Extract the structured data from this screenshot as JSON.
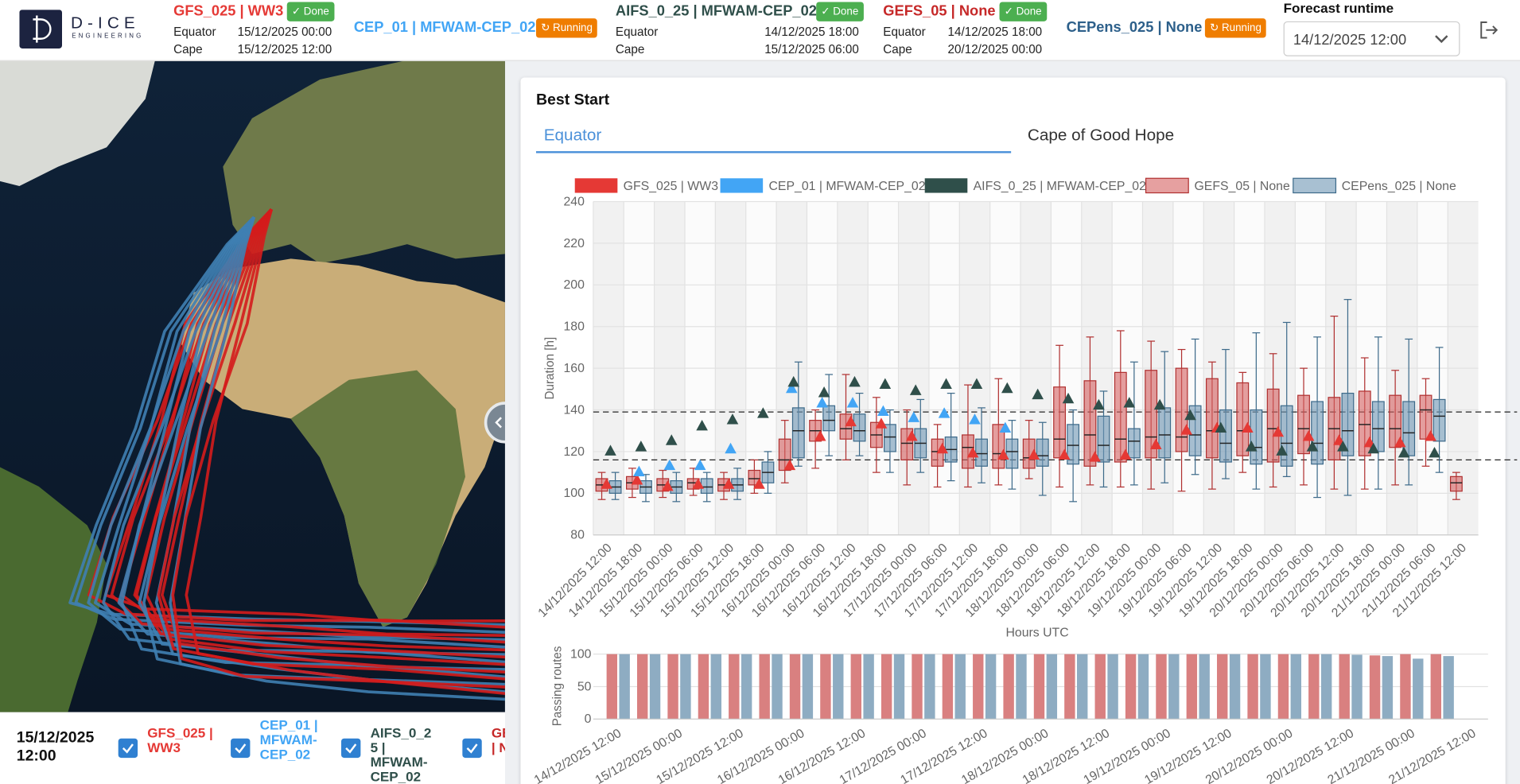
{
  "header": {
    "logo": {
      "name": "D-ICE",
      "tagline": "ENGINEERING"
    },
    "models": [
      {
        "name": "GFS_025 | WW3",
        "color": "#e53935",
        "status": "Done",
        "rows": [
          {
            "label": "Equator",
            "value": "15/12/2025 00:00"
          },
          {
            "label": "Cape",
            "value": "15/12/2025 12:00"
          }
        ]
      },
      {
        "name": "CEP_01 | MFWAM-CEP_02",
        "color": "#42a5f5",
        "status": "Running"
      },
      {
        "name": "AIFS_0_25 | MFWAM-CEP_02",
        "color": "#2f4f4a",
        "status": "Done",
        "rows": [
          {
            "label": "Equator",
            "value": "14/12/2025 18:00"
          },
          {
            "label": "Cape",
            "value": "15/12/2025 06:00"
          }
        ]
      },
      {
        "name": "GEFS_05 | None",
        "color": "#c62828",
        "status": "Done",
        "rows": [
          {
            "label": "Equator",
            "value": "14/12/2025 18:00"
          },
          {
            "label": "Cape",
            "value": "20/12/2025 00:00"
          }
        ]
      },
      {
        "name": "CEPens_025 | None",
        "color": "#2c5f8a",
        "status": "Running"
      }
    ],
    "forecast_runtime": {
      "label": "Forecast runtime",
      "value": "14/12/2025 12:00"
    }
  },
  "bottom_bar": {
    "date": "15/12/2025 12:00"
  },
  "panel": {
    "title": "Best Start",
    "tabs": [
      "Equator",
      "Cape of Good Hope"
    ],
    "active_tab": 0
  },
  "chart_data": [
    {
      "type": "box",
      "ylabel": "Duration [h]",
      "xlabel": "Hours UTC",
      "categories": [
        "14/12/2025 12:00",
        "14/12/2025 18:00",
        "15/12/2025 00:00",
        "15/12/2025 06:00",
        "15/12/2025 12:00",
        "15/12/2025 18:00",
        "16/12/2025 00:00",
        "16/12/2025 06:00",
        "16/12/2025 12:00",
        "16/12/2025 18:00",
        "17/12/2025 00:00",
        "17/12/2025 06:00",
        "17/12/2025 12:00",
        "17/12/2025 18:00",
        "18/12/2025 00:00",
        "18/12/2025 06:00",
        "18/12/2025 12:00",
        "18/12/2025 18:00",
        "19/12/2025 00:00",
        "19/12/2025 06:00",
        "19/12/2025 12:00",
        "19/12/2025 18:00",
        "20/12/2025 00:00",
        "20/12/2025 06:00",
        "20/12/2025 12:00",
        "20/12/2025 18:00",
        "21/12/2025 00:00",
        "21/12/2025 06:00",
        "21/12/2025 12:00"
      ],
      "ylim": [
        80,
        240
      ],
      "yticks": [
        80,
        100,
        120,
        140,
        160,
        180,
        200,
        220,
        240
      ],
      "grid": true,
      "reference_lines": [
        139,
        116
      ],
      "series": [
        {
          "name": "GFS_025 | WW3",
          "kind": "triangle",
          "color": "#e53935",
          "values": [
            104,
            106,
            103,
            104,
            104,
            104,
            113,
            127,
            134,
            133,
            127,
            121,
            119,
            118,
            118,
            118,
            117,
            118,
            123,
            130,
            131,
            131,
            129,
            127,
            125,
            124,
            124,
            127,
            null
          ]
        },
        {
          "name": "CEP_01 | MFWAM-CEP_02",
          "kind": "triangle",
          "color": "#42a5f5",
          "values": [
            null,
            110,
            113,
            113,
            121,
            null,
            150,
            143,
            143,
            139,
            136,
            138,
            135,
            131,
            null,
            null,
            null,
            null,
            null,
            null,
            null,
            null,
            null,
            null,
            null,
            null,
            null,
            null,
            null
          ]
        },
        {
          "name": "AIFS_0_25 | MFWAM-CEP_02",
          "kind": "triangle",
          "color": "#2f4f4a",
          "values": [
            120,
            122,
            125,
            132,
            135,
            138,
            153,
            148,
            153,
            152,
            149,
            152,
            152,
            150,
            147,
            145,
            142,
            143,
            142,
            137,
            131,
            122,
            120,
            122,
            122,
            121,
            119,
            119,
            null
          ]
        },
        {
          "name": "GEFS_05 | None",
          "kind": "box",
          "color": "rgba(214,96,96,0.6)",
          "border": "#b03030",
          "values": [
            {
              "low": 97,
              "q1": 101,
              "median": 104,
              "q3": 107,
              "high": 110
            },
            {
              "low": 98,
              "q1": 102,
              "median": 105,
              "q3": 108,
              "high": 112
            },
            {
              "low": 98,
              "q1": 101,
              "median": 104,
              "q3": 107,
              "high": 111
            },
            {
              "low": 99,
              "q1": 102,
              "median": 105,
              "q3": 107,
              "high": 112
            },
            {
              "low": 97,
              "q1": 101,
              "median": 104,
              "q3": 107,
              "high": 110
            },
            {
              "low": 100,
              "q1": 104,
              "median": 107,
              "q3": 111,
              "high": 116
            },
            {
              "low": 105,
              "q1": 111,
              "median": 116,
              "q3": 126,
              "high": 135
            },
            {
              "low": 112,
              "q1": 125,
              "median": 130,
              "q3": 135,
              "high": 140
            },
            {
              "low": 116,
              "q1": 126,
              "median": 131,
              "q3": 138,
              "high": 157
            },
            {
              "low": 110,
              "q1": 122,
              "median": 128,
              "q3": 134,
              "high": 146
            },
            {
              "low": 104,
              "q1": 116,
              "median": 124,
              "q3": 131,
              "high": 140
            },
            {
              "low": 103,
              "q1": 113,
              "median": 120,
              "q3": 126,
              "high": 133
            },
            {
              "low": 103,
              "q1": 112,
              "median": 122,
              "q3": 128,
              "high": 152
            },
            {
              "low": 104,
              "q1": 112,
              "median": 119,
              "q3": 133,
              "high": 155
            },
            {
              "low": 107,
              "q1": 112,
              "median": 117,
              "q3": 126,
              "high": 135
            },
            {
              "low": 103,
              "q1": 117,
              "median": 126,
              "q3": 151,
              "high": 171
            },
            {
              "low": 104,
              "q1": 113,
              "median": 128,
              "q3": 154,
              "high": 175
            },
            {
              "low": 103,
              "q1": 115,
              "median": 126,
              "q3": 158,
              "high": 178
            },
            {
              "low": 102,
              "q1": 117,
              "median": 127,
              "q3": 159,
              "high": 173
            },
            {
              "low": 101,
              "q1": 120,
              "median": 127,
              "q3": 160,
              "high": 169
            },
            {
              "low": 102,
              "q1": 117,
              "median": 130,
              "q3": 155,
              "high": 163
            },
            {
              "low": 110,
              "q1": 118,
              "median": 130,
              "q3": 153,
              "high": 158
            },
            {
              "low": 103,
              "q1": 115,
              "median": 131,
              "q3": 150,
              "high": 167
            },
            {
              "low": 104,
              "q1": 119,
              "median": 131,
              "q3": 147,
              "high": 160
            },
            {
              "low": 102,
              "q1": 116,
              "median": 131,
              "q3": 146,
              "high": 185
            },
            {
              "low": 102,
              "q1": 118,
              "median": 133,
              "q3": 149,
              "high": 165
            },
            {
              "low": 104,
              "q1": 122,
              "median": 131,
              "q3": 147,
              "high": 159
            },
            {
              "low": 113,
              "q1": 126,
              "median": 140,
              "q3": 147,
              "high": 155
            },
            {
              "low": 97,
              "q1": 101,
              "median": 105,
              "q3": 108,
              "high": 110
            }
          ]
        },
        {
          "name": "CEPens_025 | None",
          "kind": "box",
          "color": "rgba(110,150,180,0.6)",
          "border": "#3d6a8a",
          "values": [
            {
              "low": 97,
              "q1": 100,
              "median": 103,
              "q3": 106,
              "high": 110
            },
            {
              "low": 96,
              "q1": 100,
              "median": 103,
              "q3": 106,
              "high": 109
            },
            {
              "low": 96,
              "q1": 100,
              "median": 103,
              "q3": 106,
              "high": 110
            },
            {
              "low": 96,
              "q1": 100,
              "median": 103,
              "q3": 107,
              "high": 110
            },
            {
              "low": 97,
              "q1": 101,
              "median": 104,
              "q3": 107,
              "high": 112
            },
            {
              "low": 100,
              "q1": 105,
              "median": 110,
              "q3": 115,
              "high": 120
            },
            {
              "low": 113,
              "q1": 117,
              "median": 130,
              "q3": 141,
              "high": 163
            },
            {
              "low": 118,
              "q1": 130,
              "median": 135,
              "q3": 142,
              "high": 157
            },
            {
              "low": 118,
              "q1": 125,
              "median": 130,
              "q3": 138,
              "high": 148
            },
            {
              "low": 110,
              "q1": 120,
              "median": 127,
              "q3": 133,
              "high": 140
            },
            {
              "low": 110,
              "q1": 117,
              "median": 124,
              "q3": 131,
              "high": 145
            },
            {
              "low": 106,
              "q1": 115,
              "median": 121,
              "q3": 127,
              "high": 148
            },
            {
              "low": 105,
              "q1": 113,
              "median": 119,
              "q3": 126,
              "high": 141
            },
            {
              "low": 102,
              "q1": 112,
              "median": 120,
              "q3": 126,
              "high": 135
            },
            {
              "low": 99,
              "q1": 113,
              "median": 118,
              "q3": 126,
              "high": 134
            },
            {
              "low": 96,
              "q1": 114,
              "median": 123,
              "q3": 133,
              "high": 140
            },
            {
              "low": 103,
              "q1": 115,
              "median": 123,
              "q3": 137,
              "high": 149
            },
            {
              "low": 104,
              "q1": 117,
              "median": 125,
              "q3": 131,
              "high": 163
            },
            {
              "low": 105,
              "q1": 117,
              "median": 128,
              "q3": 141,
              "high": 168
            },
            {
              "low": 109,
              "q1": 118,
              "median": 128,
              "q3": 142,
              "high": 174
            },
            {
              "low": 107,
              "q1": 115,
              "median": 124,
              "q3": 140,
              "high": 169
            },
            {
              "low": 102,
              "q1": 114,
              "median": 122,
              "q3": 140,
              "high": 177
            },
            {
              "low": 108,
              "q1": 113,
              "median": 124,
              "q3": 142,
              "high": 182
            },
            {
              "low": 98,
              "q1": 114,
              "median": 124,
              "q3": 144,
              "high": 175
            },
            {
              "low": 99,
              "q1": 118,
              "median": 130,
              "q3": 148,
              "high": 193
            },
            {
              "low": 102,
              "q1": 120,
              "median": 131,
              "q3": 144,
              "high": 175
            },
            {
              "low": 104,
              "q1": 118,
              "median": 129,
              "q3": 144,
              "high": 174
            },
            {
              "low": 110,
              "q1": 125,
              "median": 137,
              "q3": 145,
              "high": 170
            },
            null
          ]
        }
      ]
    },
    {
      "type": "bar",
      "ylabel": "Passing routes",
      "ylim": [
        0,
        100
      ],
      "yticks": [
        0,
        50,
        100
      ],
      "grid": true,
      "series": [
        {
          "color": "#d98080",
          "values": [
            100,
            100,
            100,
            100,
            100,
            100,
            100,
            100,
            100,
            100,
            100,
            100,
            100,
            100,
            100,
            100,
            100,
            100,
            100,
            100,
            100,
            100,
            100,
            100,
            100,
            98,
            100,
            100,
            null
          ]
        },
        {
          "color": "#8eacc2",
          "values": [
            100,
            100,
            100,
            100,
            100,
            100,
            100,
            100,
            100,
            100,
            100,
            100,
            100,
            100,
            100,
            100,
            100,
            100,
            100,
            100,
            100,
            100,
            100,
            100,
            99,
            97,
            93,
            97,
            null
          ]
        }
      ]
    }
  ]
}
